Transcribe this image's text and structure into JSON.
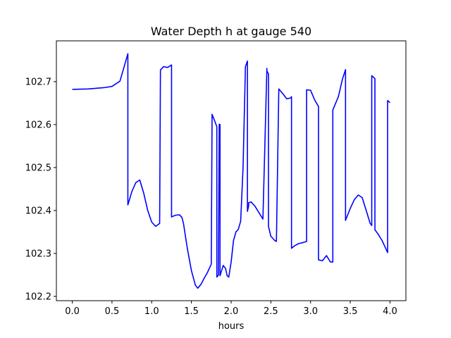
{
  "chart_data": {
    "type": "line",
    "title": "Water Depth h at gauge 540",
    "xlabel": "hours",
    "ylabel": "",
    "xlim": [
      -0.2,
      4.2
    ],
    "ylim": [
      102.19,
      102.795
    ],
    "xticks": [
      0.0,
      0.5,
      1.0,
      1.5,
      2.0,
      2.5,
      3.0,
      3.5,
      4.0
    ],
    "xtick_labels": [
      "0.0",
      "0.5",
      "1.0",
      "1.5",
      "2.0",
      "2.5",
      "3.0",
      "3.5",
      "4.0"
    ],
    "yticks": [
      102.2,
      102.3,
      102.4,
      102.5,
      102.6,
      102.7
    ],
    "ytick_labels": [
      "102.2",
      "102.3",
      "102.4",
      "102.5",
      "102.6",
      "102.7"
    ],
    "grid": false,
    "series": [
      {
        "color": "#0000ff",
        "x": [
          0.0,
          0.2,
          0.4,
          0.5,
          0.6,
          0.65,
          0.7,
          0.7,
          0.75,
          0.8,
          0.85,
          0.9,
          0.95,
          1.0,
          1.05,
          1.1,
          1.11,
          1.15,
          1.2,
          1.25,
          1.25,
          1.3,
          1.35,
          1.38,
          1.4,
          1.45,
          1.5,
          1.55,
          1.58,
          1.62,
          1.66,
          1.7,
          1.75,
          1.76,
          1.76,
          1.79,
          1.82,
          1.82,
          1.84,
          1.85,
          1.86,
          1.86,
          1.88,
          1.9,
          1.93,
          1.95,
          1.97,
          2.0,
          2.03,
          2.06,
          2.09,
          2.12,
          2.15,
          2.18,
          2.205,
          2.205,
          2.22,
          2.22,
          2.25,
          2.3,
          2.35,
          2.4,
          2.45,
          2.45,
          2.47,
          2.47,
          2.5,
          2.55,
          2.57,
          2.6,
          2.6,
          2.65,
          2.7,
          2.75,
          2.76,
          2.76,
          2.8,
          2.85,
          2.9,
          2.95,
          2.95,
          3.0,
          3.05,
          3.1,
          3.1,
          3.15,
          3.2,
          3.25,
          3.28,
          3.28,
          3.35,
          3.4,
          3.44,
          3.44,
          3.5,
          3.55,
          3.6,
          3.65,
          3.7,
          3.75,
          3.77,
          3.77,
          3.81,
          3.81,
          3.85,
          3.9,
          3.95,
          3.97,
          3.97,
          4.0
        ],
        "values": [
          102.682,
          102.683,
          102.686,
          102.689,
          102.701,
          102.733,
          102.765,
          102.413,
          102.444,
          102.465,
          102.471,
          102.44,
          102.4,
          102.373,
          102.363,
          102.37,
          102.727,
          102.735,
          102.733,
          102.739,
          102.385,
          102.389,
          102.39,
          102.384,
          102.37,
          102.31,
          102.26,
          102.226,
          102.219,
          102.228,
          102.242,
          102.255,
          102.275,
          102.624,
          102.624,
          102.61,
          102.595,
          102.245,
          102.25,
          102.601,
          102.6,
          102.248,
          102.26,
          102.272,
          102.265,
          102.248,
          102.245,
          102.28,
          102.33,
          102.35,
          102.356,
          102.375,
          102.5,
          102.735,
          102.748,
          102.398,
          102.41,
          102.418,
          102.42,
          102.41,
          102.395,
          102.38,
          102.731,
          102.725,
          102.718,
          102.363,
          102.34,
          102.33,
          102.328,
          102.682,
          102.683,
          102.672,
          102.66,
          102.662,
          102.665,
          102.312,
          102.318,
          102.323,
          102.325,
          102.328,
          102.681,
          102.68,
          102.658,
          102.642,
          102.285,
          102.283,
          102.295,
          102.28,
          102.28,
          102.634,
          102.665,
          102.705,
          102.728,
          102.377,
          102.405,
          102.425,
          102.436,
          102.43,
          102.4,
          102.37,
          102.365,
          102.714,
          102.707,
          102.355,
          102.345,
          102.33,
          102.31,
          102.302,
          102.656,
          102.651
        ]
      }
    ]
  }
}
